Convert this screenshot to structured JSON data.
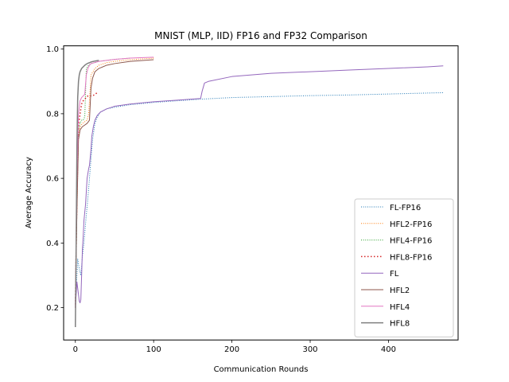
{
  "chart_data": {
    "type": "line",
    "title": "MNIST (MLP, IID) FP16 and FP32 Comparison",
    "xlabel": "Communication Rounds",
    "ylabel": "Average Accuracy",
    "xlim": [
      -15,
      489
    ],
    "ylim": [
      0.1,
      1.01
    ],
    "xticks": [
      0,
      100,
      200,
      300,
      400
    ],
    "yticks": [
      0.2,
      0.4,
      0.6,
      0.8,
      1.0
    ],
    "ytick_labels": [
      "0.2",
      "0.4",
      "0.6",
      "0.8",
      "1.0"
    ],
    "legend_position": "lower-right",
    "series": [
      {
        "name": "FL-FP16",
        "color": "#1f77b4",
        "style": "dotted",
        "width": 1,
        "x": [
          0,
          2,
          3,
          5,
          7,
          9,
          11,
          13,
          16,
          18,
          20,
          22,
          25,
          28,
          32,
          40,
          50,
          70,
          100,
          130,
          160,
          200,
          250,
          300,
          350,
          400,
          450,
          470
        ],
        "y": [
          0.2,
          0.3,
          0.35,
          0.32,
          0.3,
          0.36,
          0.4,
          0.46,
          0.54,
          0.6,
          0.66,
          0.72,
          0.77,
          0.79,
          0.805,
          0.815,
          0.82,
          0.828,
          0.835,
          0.84,
          0.845,
          0.85,
          0.853,
          0.856,
          0.858,
          0.861,
          0.864,
          0.865
        ]
      },
      {
        "name": "HFL2-FP16",
        "color": "#ff7f0e",
        "style": "dotted",
        "width": 1,
        "x": [
          0,
          2,
          4,
          6,
          9,
          12,
          15,
          17,
          20,
          25,
          30,
          40,
          50,
          70,
          100
        ],
        "y": [
          0.2,
          0.5,
          0.73,
          0.76,
          0.77,
          0.775,
          0.78,
          0.8,
          0.92,
          0.94,
          0.95,
          0.958,
          0.962,
          0.967,
          0.972
        ]
      },
      {
        "name": "HFL4-FP16",
        "color": "#2ca02c",
        "style": "dotted",
        "width": 1,
        "x": [
          0,
          2,
          4,
          6,
          8,
          10,
          12,
          14,
          17,
          20,
          30,
          50,
          70
        ],
        "y": [
          0.2,
          0.55,
          0.75,
          0.77,
          0.78,
          0.78,
          0.79,
          0.94,
          0.95,
          0.955,
          0.962,
          0.968,
          0.972
        ]
      },
      {
        "name": "HFL8-FP16",
        "color": "#d62728",
        "style": "dotted-thick",
        "width": 1.5,
        "x": [
          0,
          2,
          4,
          6,
          8,
          10,
          12,
          14,
          16,
          18,
          20,
          22,
          25,
          28
        ],
        "y": [
          0.2,
          0.55,
          0.76,
          0.8,
          0.83,
          0.84,
          0.845,
          0.85,
          0.855,
          0.855,
          0.855,
          0.855,
          0.86,
          0.865
        ]
      },
      {
        "name": "FL",
        "color": "#9467bd",
        "style": "solid",
        "width": 1,
        "x": [
          0,
          2,
          3,
          4,
          5,
          6,
          7,
          8,
          9,
          10,
          11,
          13,
          15,
          17,
          18,
          20,
          21,
          23,
          25,
          28,
          32,
          40,
          50,
          70,
          100,
          130,
          160,
          162,
          165,
          170,
          200,
          250,
          300,
          350,
          400,
          450,
          470
        ],
        "y": [
          0.2,
          0.28,
          0.26,
          0.24,
          0.22,
          0.215,
          0.225,
          0.3,
          0.38,
          0.42,
          0.47,
          0.52,
          0.6,
          0.63,
          0.64,
          0.69,
          0.73,
          0.76,
          0.78,
          0.795,
          0.805,
          0.815,
          0.823,
          0.83,
          0.837,
          0.842,
          0.847,
          0.87,
          0.895,
          0.9,
          0.915,
          0.925,
          0.93,
          0.935,
          0.94,
          0.945,
          0.948
        ]
      },
      {
        "name": "HFL2",
        "color": "#8c564b",
        "style": "solid",
        "width": 1,
        "x": [
          0,
          2,
          4,
          6,
          9,
          12,
          15,
          18,
          20,
          22,
          25,
          30,
          40,
          50,
          70,
          100
        ],
        "y": [
          0.2,
          0.5,
          0.72,
          0.75,
          0.76,
          0.765,
          0.77,
          0.78,
          0.88,
          0.91,
          0.93,
          0.94,
          0.95,
          0.955,
          0.962,
          0.967
        ]
      },
      {
        "name": "HFL4",
        "color": "#e377c2",
        "style": "solid",
        "width": 1,
        "x": [
          0,
          2,
          4,
          6,
          8,
          10,
          12,
          14,
          16,
          18,
          20,
          30,
          50,
          70,
          100
        ],
        "y": [
          0.2,
          0.6,
          0.8,
          0.84,
          0.85,
          0.855,
          0.86,
          0.92,
          0.94,
          0.95,
          0.955,
          0.962,
          0.968,
          0.972,
          0.975
        ]
      },
      {
        "name": "HFL8",
        "color": "#7f7f7f",
        "style": "solid",
        "width": 1.5,
        "x": [
          0,
          1,
          2,
          3,
          4,
          5,
          6,
          8,
          10,
          12,
          15,
          20,
          25,
          30
        ],
        "y": [
          0.14,
          0.4,
          0.7,
          0.85,
          0.9,
          0.92,
          0.93,
          0.94,
          0.945,
          0.95,
          0.955,
          0.96,
          0.963,
          0.965
        ]
      }
    ]
  }
}
